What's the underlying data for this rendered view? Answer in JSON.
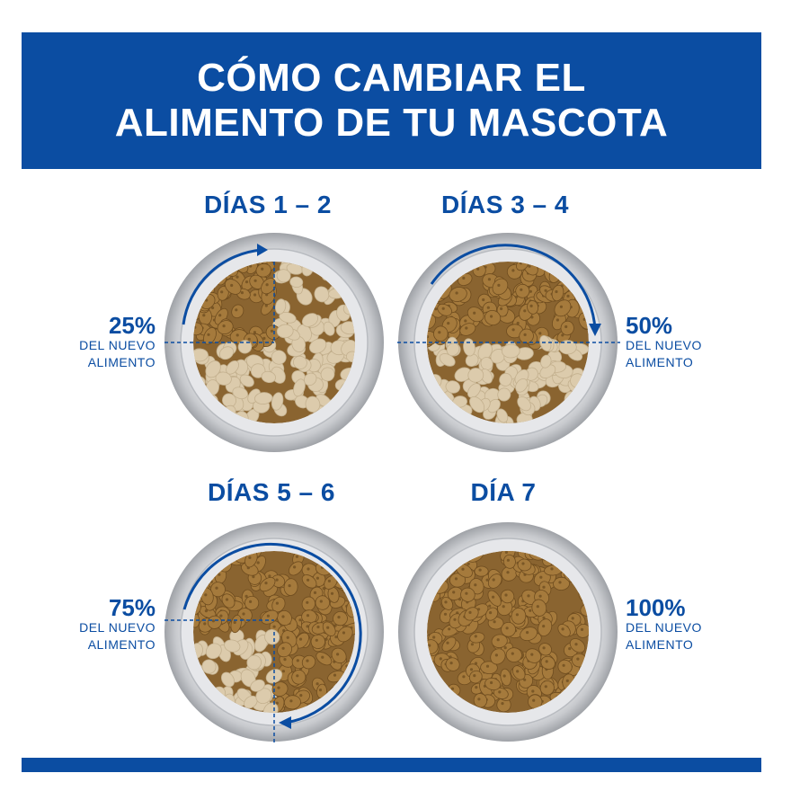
{
  "banner": {
    "line1": "CÓMO CAMBIAR EL",
    "line2": "ALIMENTO DE TU MASCOTA"
  },
  "stages": [
    {
      "title": "DÍAS 1 – 2",
      "percent": "25%",
      "line1": "DEL NUEVO",
      "line2": "ALIMENTO",
      "new_food_fraction": 0.25
    },
    {
      "title": "DÍAS 3 – 4",
      "percent": "50%",
      "line1": "DEL NUEVO",
      "line2": "ALIMENTO",
      "new_food_fraction": 0.5
    },
    {
      "title": "DÍAS 5 – 6",
      "percent": "75%",
      "line1": "DEL NUEVO",
      "line2": "ALIMENTO",
      "new_food_fraction": 0.75
    },
    {
      "title": "DÍA 7",
      "percent": "100%",
      "line1": "DEL NUEVO",
      "line2": "ALIMENTO",
      "new_food_fraction": 1.0
    }
  ],
  "colors": {
    "brand_blue": "#0b4da2",
    "new_food": "#a57a3c",
    "old_food": "#dccbac",
    "bowl": "#d9dadd"
  }
}
